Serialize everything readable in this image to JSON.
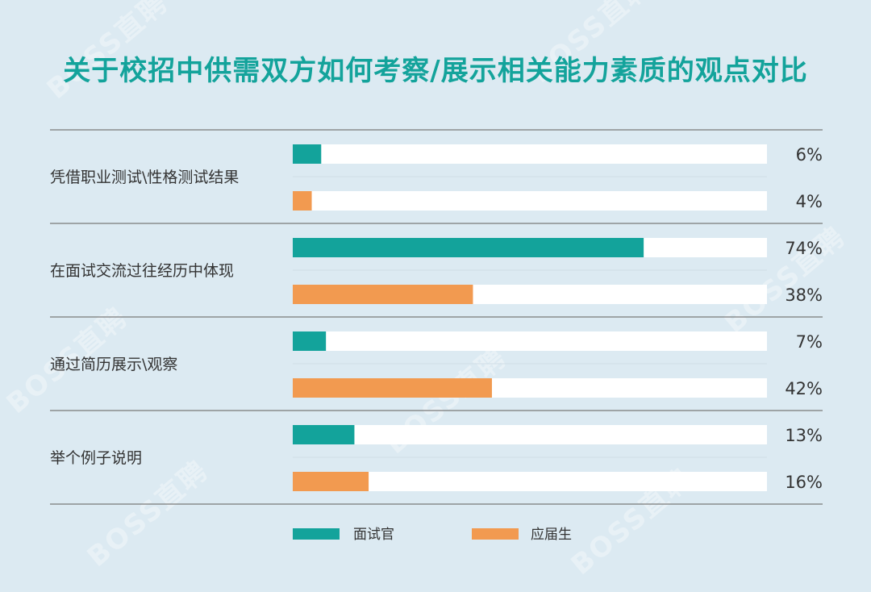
{
  "chart_data": {
    "type": "bar",
    "orientation": "horizontal",
    "title": "关于校招中供需双方如何考察/展示相关能力素质的观点对比",
    "categories": [
      "凭借职业测试\\性格测试结果",
      "在面试交流过往经历中体现",
      "通过简历展示\\观察",
      "举个例子说明"
    ],
    "series": [
      {
        "name": "面试官",
        "values": [
          6,
          74,
          7,
          13
        ],
        "color": "#13a39b"
      },
      {
        "name": "应届生",
        "values": [
          4,
          38,
          42,
          16
        ],
        "color": "#f29a50"
      }
    ],
    "value_suffix": "%",
    "xlim": [
      0,
      100
    ],
    "legend_position": "bottom",
    "watermark": "BOSS直聘"
  }
}
